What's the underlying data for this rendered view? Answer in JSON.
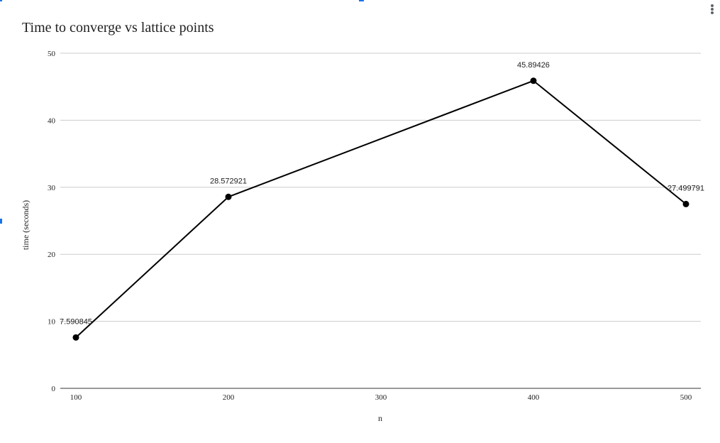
{
  "menu": {
    "icon": "more-vert-icon"
  },
  "chart_data": {
    "type": "line",
    "title": "Time to converge vs lattice points",
    "xlabel": "n",
    "ylabel": "time (seconds)",
    "x_ticks": [
      100,
      200,
      300,
      400,
      500
    ],
    "y_ticks": [
      0,
      10,
      20,
      30,
      40,
      50
    ],
    "xlim": [
      100,
      500
    ],
    "ylim": [
      0,
      50
    ],
    "grid": true,
    "legend": "none",
    "series": [
      {
        "color": "#000000",
        "x": [
          100,
          200,
          400,
          500
        ],
        "values": [
          7.590845,
          28.572921,
          45.89426,
          27.499791
        ],
        "labels": [
          "7.590845",
          "28.572921",
          "45.89426",
          "27.499791"
        ]
      }
    ]
  }
}
